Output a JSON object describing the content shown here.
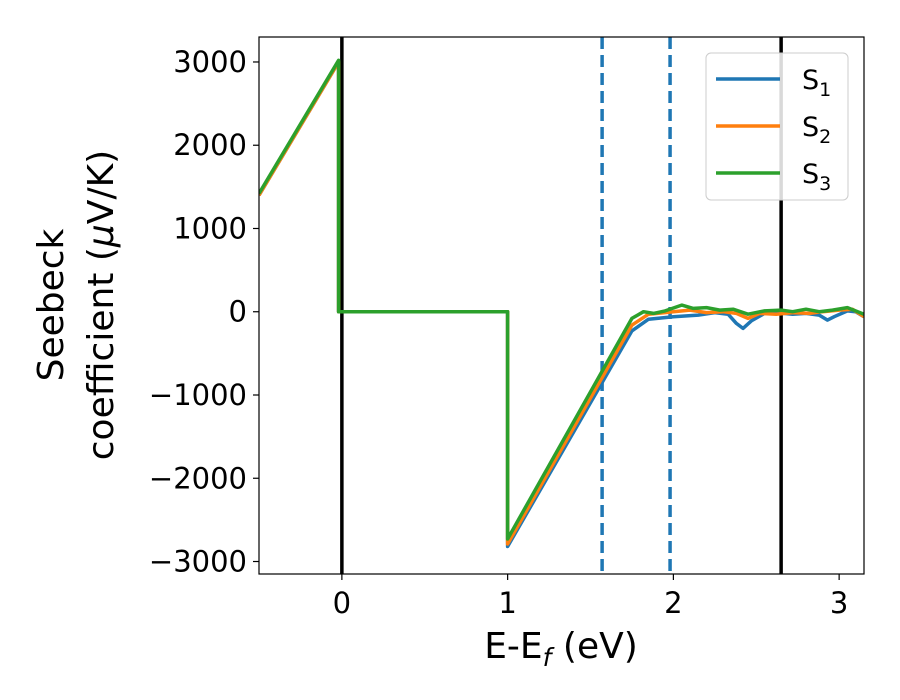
{
  "chart_data": {
    "type": "line",
    "xlabel": "E-E$_f$ (eV)",
    "xlabel_parts": {
      "main": "E-E",
      "sub": "f",
      "tail": " (eV)"
    },
    "ylabel_line1": "Seebeck",
    "ylabel_line2_prefix": "coefficient  (",
    "ylabel_mu": "μ",
    "ylabel_line2_suffix": "V/K)",
    "xlim": [
      -0.5,
      3.15
    ],
    "ylim": [
      -3150,
      3300
    ],
    "xticks": [
      0,
      1,
      2,
      3
    ],
    "xtick_labels": [
      "0",
      "1",
      "2",
      "3"
    ],
    "yticks": [
      3000,
      2000,
      1000,
      0,
      -1000,
      -2000,
      -3000
    ],
    "ytick_labels": [
      "3000",
      "2000",
      "1000",
      "0",
      "−1000",
      "−2000",
      "−3000"
    ],
    "grid": false,
    "legend_position": "top-right",
    "vlines": [
      {
        "x": 0.0,
        "style": "solid",
        "color": "#000000"
      },
      {
        "x": 1.57,
        "style": "dashed",
        "color": "#1f77b4"
      },
      {
        "x": 1.98,
        "style": "dashed",
        "color": "#1f77b4"
      },
      {
        "x": 2.65,
        "style": "solid",
        "color": "#000000"
      }
    ],
    "series": [
      {
        "name": "S",
        "sub": "1",
        "color": "#1f77b4",
        "points": [
          [
            -0.5,
            1400
          ],
          [
            -0.02,
            3000
          ],
          [
            -0.02,
            0
          ],
          [
            1.0,
            0
          ],
          [
            1.0,
            -2820
          ],
          [
            1.75,
            -230
          ],
          [
            1.85,
            -90
          ],
          [
            2.0,
            -60
          ],
          [
            2.15,
            -40
          ],
          [
            2.25,
            -10
          ],
          [
            2.33,
            -30
          ],
          [
            2.38,
            -140
          ],
          [
            2.42,
            -200
          ],
          [
            2.47,
            -110
          ],
          [
            2.55,
            -20
          ],
          [
            2.62,
            -10
          ],
          [
            2.72,
            -30
          ],
          [
            2.8,
            -20
          ],
          [
            2.88,
            -40
          ],
          [
            2.93,
            -100
          ],
          [
            2.97,
            -60
          ],
          [
            3.05,
            10
          ],
          [
            3.1,
            0
          ],
          [
            3.15,
            -60
          ]
        ]
      },
      {
        "name": "S",
        "sub": "2",
        "color": "#ff7f0e",
        "points": [
          [
            -0.5,
            1400
          ],
          [
            -0.02,
            3000
          ],
          [
            -0.02,
            0
          ],
          [
            1.0,
            0
          ],
          [
            1.0,
            -2790
          ],
          [
            1.75,
            -160
          ],
          [
            1.85,
            -30
          ],
          [
            2.0,
            0
          ],
          [
            2.1,
            20
          ],
          [
            2.2,
            -10
          ],
          [
            2.3,
            0
          ],
          [
            2.38,
            -20
          ],
          [
            2.45,
            -80
          ],
          [
            2.52,
            -20
          ],
          [
            2.62,
            -30
          ],
          [
            2.72,
            -10
          ],
          [
            2.82,
            -20
          ],
          [
            2.9,
            0
          ],
          [
            3.0,
            20
          ],
          [
            3.08,
            30
          ],
          [
            3.15,
            -60
          ]
        ]
      },
      {
        "name": "S",
        "sub": "3",
        "color": "#2ca02c",
        "points": [
          [
            -0.5,
            1420
          ],
          [
            -0.02,
            3020
          ],
          [
            -0.02,
            0
          ],
          [
            1.0,
            0
          ],
          [
            1.0,
            -2730
          ],
          [
            1.75,
            -80
          ],
          [
            1.82,
            0
          ],
          [
            1.88,
            -20
          ],
          [
            1.95,
            10
          ],
          [
            2.05,
            80
          ],
          [
            2.12,
            40
          ],
          [
            2.2,
            50
          ],
          [
            2.28,
            20
          ],
          [
            2.36,
            30
          ],
          [
            2.45,
            -30
          ],
          [
            2.55,
            10
          ],
          [
            2.65,
            20
          ],
          [
            2.72,
            0
          ],
          [
            2.8,
            30
          ],
          [
            2.88,
            0
          ],
          [
            2.96,
            20
          ],
          [
            3.05,
            50
          ],
          [
            3.15,
            -30
          ]
        ]
      }
    ]
  }
}
